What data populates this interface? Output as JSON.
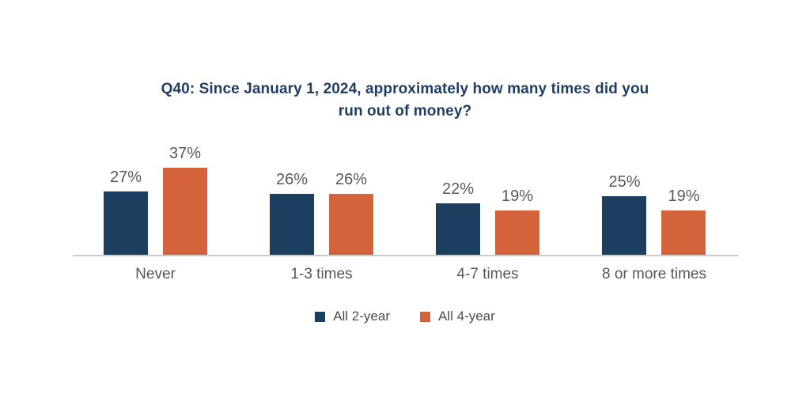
{
  "chart_data": {
    "type": "bar",
    "title": "Q40: Since January 1, 2024, approximately how many times did you run out of money?",
    "categories": [
      "Never",
      "1-3 times",
      "4-7 times",
      "8 or more times"
    ],
    "series": [
      {
        "name": "All 2-year",
        "color": "#1c3e5f",
        "values": [
          27,
          26,
          22,
          25
        ]
      },
      {
        "name": "All 4-year",
        "color": "#d4623a",
        "values": [
          37,
          26,
          19,
          19
        ]
      }
    ],
    "unit": "%",
    "xlabel": "",
    "ylabel": "",
    "ylim": [
      0,
      40
    ],
    "grid": false,
    "value_labels_shown": true,
    "legend_position": "bottom"
  },
  "colors": {
    "background_color": "#ffffff",
    "title_color": "#203e63",
    "value_label_color": "#58595b",
    "category_label_color": "#54565a",
    "legend_text_color": "#4a4a4b",
    "axis_line_color": "#cbcccd"
  }
}
